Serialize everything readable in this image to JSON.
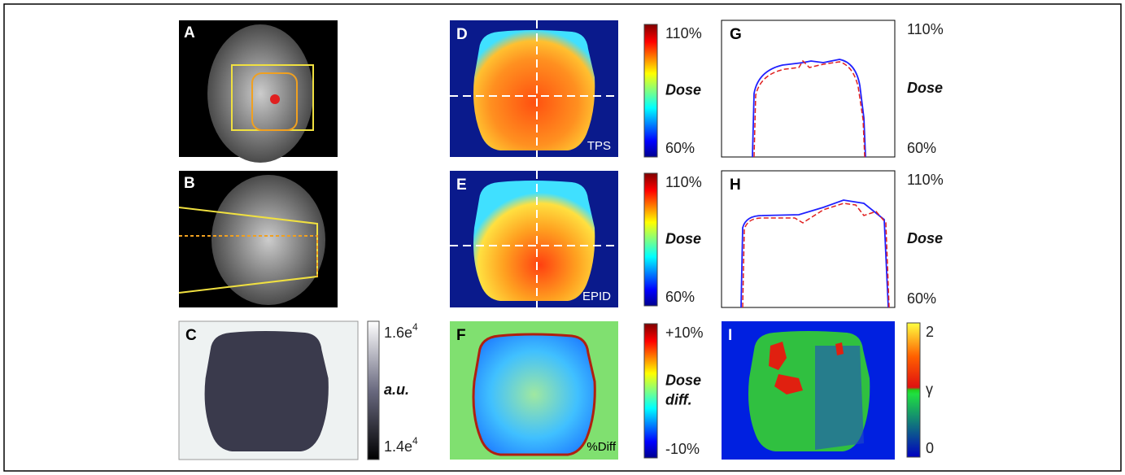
{
  "panels": [
    {
      "label": "A"
    },
    {
      "label": "B"
    },
    {
      "label": "C",
      "colorbar": {
        "top": {
          "base": "1.6e",
          "exp": "4"
        },
        "title": "a.u.",
        "bottom": {
          "base": "1.4e",
          "exp": "4"
        }
      }
    },
    {
      "label": "D",
      "tag": "TPS",
      "colorbar": {
        "top": "110%",
        "title": "Dose",
        "bottom": "60%"
      }
    },
    {
      "label": "E",
      "tag": "EPID",
      "colorbar": {
        "top": "110%",
        "title": "Dose",
        "bottom": "60%"
      }
    },
    {
      "label": "F",
      "tag": "%Diff",
      "colorbar": {
        "top": "+10%",
        "title": [
          "Dose",
          "diff."
        ],
        "bottom": "-10%"
      }
    },
    {
      "label": "G",
      "colorbar": {
        "top": "110%",
        "title": "Dose",
        "bottom": "60%"
      }
    },
    {
      "label": "H",
      "colorbar": {
        "top": "110%",
        "title": "Dose",
        "bottom": "60%"
      }
    },
    {
      "label": "I",
      "colorbar": {
        "top": "2",
        "title": "γ",
        "bottom": "0"
      }
    }
  ]
}
